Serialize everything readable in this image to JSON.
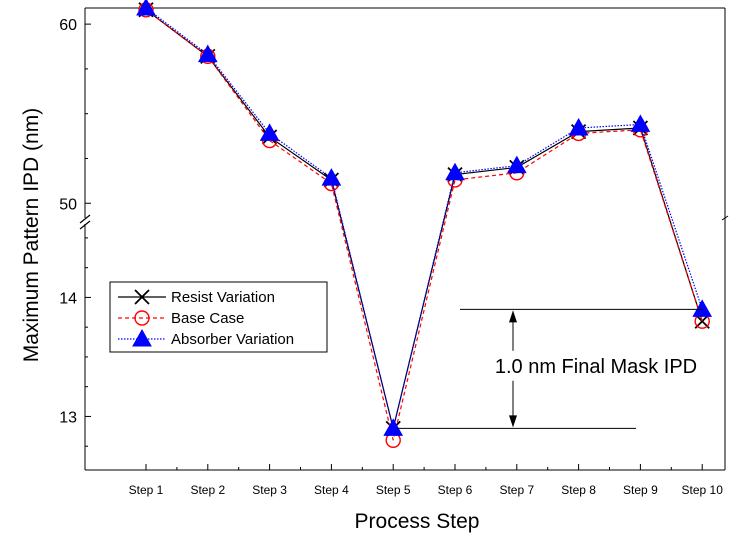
{
  "chart_data": {
    "type": "line",
    "xlabel": "Process Step",
    "ylabel": "Maximum Pattern IPD (nm)",
    "categories": [
      "Step 1",
      "Step 2",
      "Step 3",
      "Step 4",
      "Step 5",
      "Step 6",
      "Step 7",
      "Step 8",
      "Step 9",
      "Step 10"
    ],
    "y_axis": {
      "broken": true,
      "lower_segment": {
        "range": [
          12.55,
          14.6
        ],
        "ticks": [
          "13",
          "14"
        ]
      },
      "upper_segment": {
        "range": [
          49.4,
          60.9
        ],
        "ticks": [
          "50",
          "60"
        ]
      }
    },
    "series": [
      {
        "name": "Resist Variation",
        "marker": "x",
        "line": "solid",
        "color": "#000000",
        "values": [
          60.8,
          58.2,
          53.7,
          51.3,
          12.9,
          51.6,
          52.0,
          54.0,
          54.2,
          13.8
        ]
      },
      {
        "name": "Base Case",
        "marker": "circle-open",
        "line": "dashed",
        "color": "#ff0000",
        "values": [
          60.8,
          58.2,
          53.5,
          51.1,
          12.8,
          51.3,
          51.7,
          53.9,
          54.1,
          13.8
        ]
      },
      {
        "name": "Absorber Variation",
        "marker": "triangle-filled",
        "line": "dotted",
        "color": "#0000ff",
        "values": [
          60.9,
          58.3,
          53.9,
          51.4,
          12.9,
          51.7,
          52.1,
          54.2,
          54.4,
          13.9
        ]
      }
    ],
    "annotation": {
      "text": "1.0 nm Final Mask IPD",
      "from": 12.9,
      "to": 13.9
    },
    "legend_position": "left-lower",
    "grid": false
  }
}
